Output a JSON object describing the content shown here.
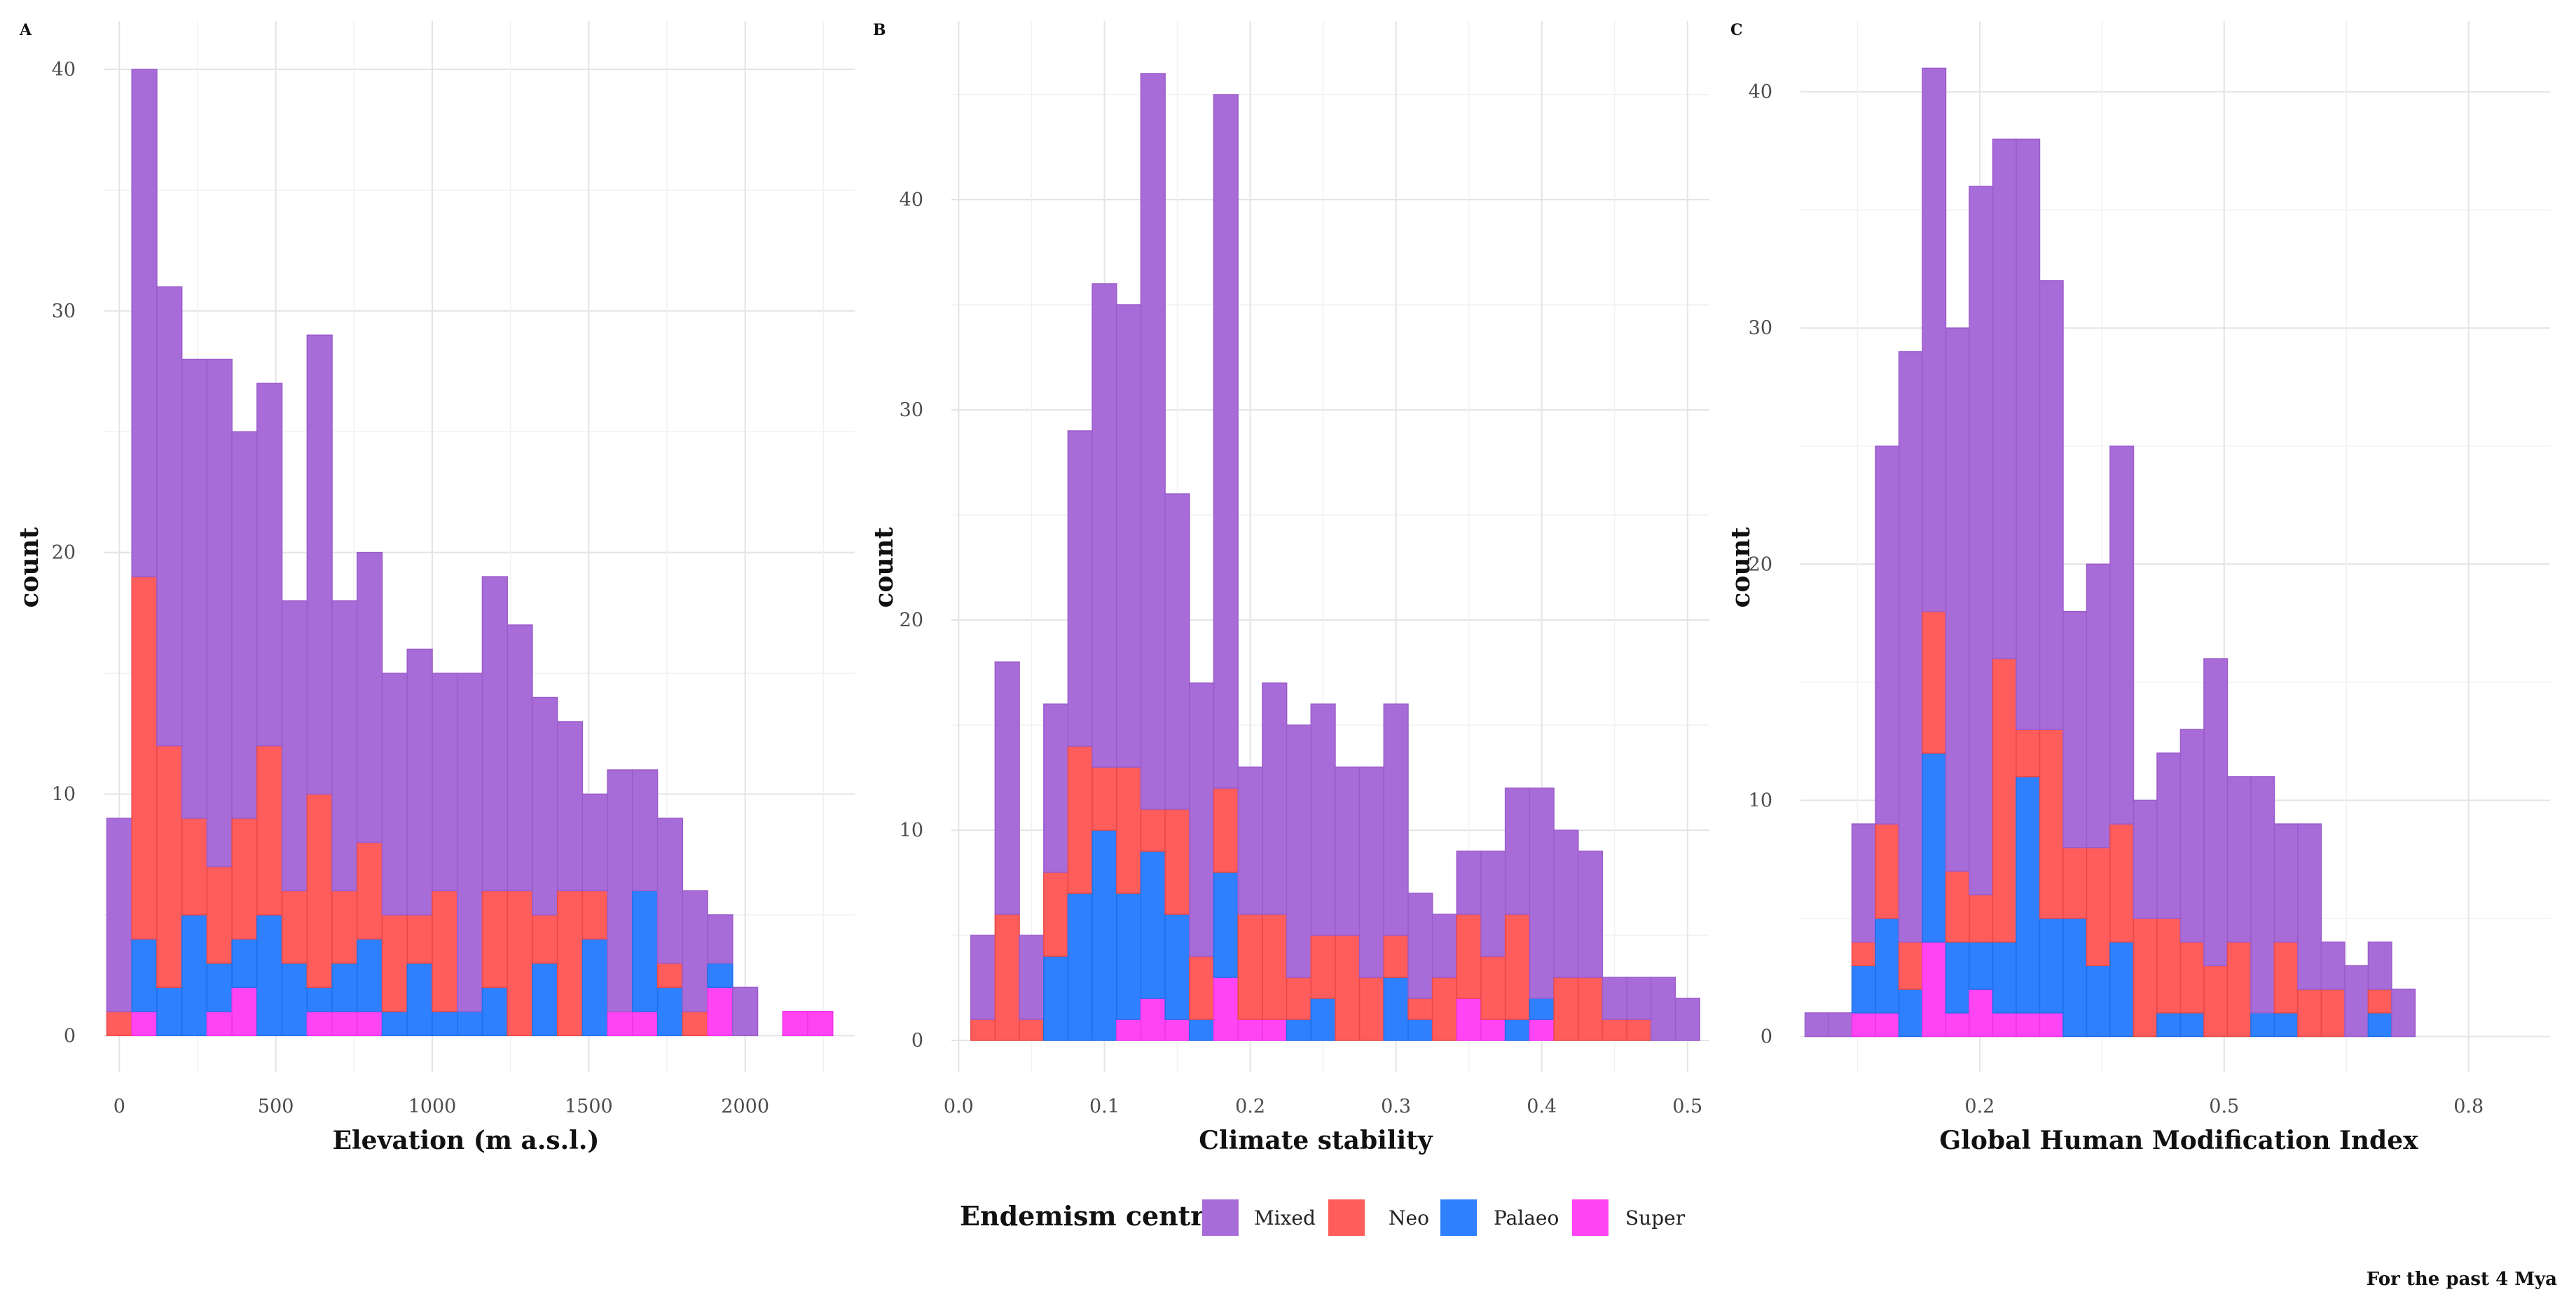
{
  "caption": "For the past 4 Mya",
  "legend": {
    "title": "Endemism centres",
    "entries": [
      {
        "label": "Mixed",
        "color": "#A86CD8"
      },
      {
        "label": "Neo",
        "color": "#FF5C5C"
      },
      {
        "label": "Palaeo",
        "color": "#2E80FF"
      },
      {
        "label": "Super",
        "color": "#FF44F4"
      }
    ]
  },
  "chart_data": [
    {
      "type": "bar",
      "stacked": true,
      "panel": "A",
      "title": "",
      "xlabel": "Elevation (m a.s.l.)",
      "ylabel": "count",
      "xlim": [
        -50,
        2350
      ],
      "ylim": [
        -1.5,
        42
      ],
      "bin_width": 80,
      "x": [
        0,
        80,
        160,
        240,
        320,
        400,
        480,
        560,
        640,
        720,
        800,
        880,
        960,
        1040,
        1120,
        1200,
        1280,
        1360,
        1440,
        1520,
        1600,
        1680,
        1760,
        1840,
        1920,
        2000,
        2080,
        2160,
        2240
      ],
      "xticks": [
        0,
        500,
        1000,
        1500,
        2000
      ],
      "xtick_labels": [
        "0",
        "500",
        "1000",
        "1500",
        "2000"
      ],
      "yticks": [
        0,
        10,
        20,
        30,
        40
      ],
      "ytick_labels": [
        "0",
        "10",
        "20",
        "30",
        "40"
      ],
      "grid": true,
      "series": [
        {
          "name": "Super",
          "values": [
            0,
            1,
            0,
            0,
            1,
            2,
            0,
            0,
            1,
            1,
            1,
            0,
            0,
            0,
            0,
            0,
            0,
            0,
            0,
            0,
            1,
            1,
            0,
            0,
            2,
            0,
            0,
            1,
            1
          ]
        },
        {
          "name": "Palaeo",
          "values": [
            0,
            3,
            2,
            5,
            2,
            2,
            5,
            3,
            1,
            2,
            3,
            1,
            3,
            1,
            1,
            2,
            0,
            3,
            0,
            4,
            0,
            5,
            2,
            0,
            1,
            0,
            0,
            0,
            0
          ]
        },
        {
          "name": "Neo",
          "values": [
            1,
            15,
            10,
            4,
            4,
            5,
            7,
            3,
            8,
            3,
            4,
            4,
            2,
            5,
            0,
            4,
            6,
            2,
            6,
            2,
            0,
            0,
            1,
            1,
            0,
            0,
            0,
            0,
            0
          ]
        },
        {
          "name": "Mixed",
          "values": [
            8,
            21,
            19,
            19,
            21,
            16,
            15,
            12,
            19,
            12,
            12,
            10,
            11,
            9,
            14,
            13,
            11,
            9,
            7,
            4,
            10,
            5,
            6,
            5,
            2,
            2,
            0,
            0,
            0
          ]
        }
      ]
    },
    {
      "type": "bar",
      "stacked": true,
      "panel": "B",
      "title": "",
      "xlabel": "Climate stability",
      "ylabel": "count",
      "xlim": [
        -0.005,
        0.515
      ],
      "ylim": [
        -1.5,
        48.5
      ],
      "bin_width": 0.01667,
      "x": [
        0.0167,
        0.0333,
        0.05,
        0.0667,
        0.0833,
        0.1,
        0.1167,
        0.1333,
        0.15,
        0.1667,
        0.1833,
        0.2,
        0.2167,
        0.2333,
        0.25,
        0.2667,
        0.2833,
        0.3,
        0.3167,
        0.3333,
        0.35,
        0.3667,
        0.3833,
        0.4,
        0.4167,
        0.4333,
        0.45,
        0.4667,
        0.4833,
        0.5
      ],
      "xticks": [
        0.0,
        0.1,
        0.2,
        0.3,
        0.4,
        0.5
      ],
      "xtick_labels": [
        "0.0",
        "0.1",
        "0.2",
        "0.3",
        "0.4",
        "0.5"
      ],
      "yticks": [
        0,
        10,
        20,
        30,
        40
      ],
      "ytick_labels": [
        "0",
        "10",
        "20",
        "30",
        "40"
      ],
      "grid": true,
      "series": [
        {
          "name": "Super",
          "values": [
            0,
            0,
            0,
            0,
            0,
            0,
            1,
            2,
            1,
            0,
            3,
            1,
            1,
            0,
            0,
            0,
            0,
            0,
            0,
            0,
            2,
            1,
            0,
            1,
            0,
            0,
            0,
            0,
            0,
            0
          ]
        },
        {
          "name": "Palaeo",
          "values": [
            0,
            0,
            0,
            4,
            7,
            10,
            6,
            7,
            5,
            1,
            5,
            0,
            0,
            1,
            2,
            0,
            0,
            3,
            1,
            0,
            0,
            0,
            1,
            1,
            0,
            0,
            0,
            0,
            0,
            0
          ]
        },
        {
          "name": "Neo",
          "values": [
            1,
            6,
            1,
            4,
            7,
            3,
            6,
            2,
            5,
            3,
            4,
            5,
            5,
            2,
            3,
            5,
            3,
            2,
            1,
            3,
            4,
            3,
            5,
            0,
            3,
            3,
            1,
            1,
            0,
            0
          ]
        },
        {
          "name": "Mixed",
          "values": [
            4,
            12,
            4,
            8,
            15,
            23,
            22,
            35,
            15,
            13,
            33,
            7,
            11,
            12,
            11,
            8,
            10,
            11,
            5,
            3,
            3,
            5,
            6,
            10,
            7,
            6,
            2,
            2,
            3,
            2
          ]
        }
      ]
    },
    {
      "type": "bar",
      "stacked": true,
      "panel": "C",
      "title": "",
      "xlabel": "Global Human Modification Index",
      "ylabel": "count",
      "xlim": [
        -0.02,
        0.9
      ],
      "ylim": [
        -1.5,
        43
      ],
      "bin_width": 0.0288,
      "x": [
        0.0,
        0.0288,
        0.0576,
        0.0864,
        0.1152,
        0.144,
        0.1728,
        0.2016,
        0.2304,
        0.2592,
        0.288,
        0.3168,
        0.3456,
        0.3744,
        0.4032,
        0.432,
        0.4608,
        0.4896,
        0.5184,
        0.5472,
        0.576,
        0.6048,
        0.6336,
        0.6624,
        0.6912,
        0.72,
        0.7488,
        0.7776,
        0.8064,
        0.8352
      ],
      "xticks": [
        0.2,
        0.5,
        0.8
      ],
      "xtick_labels": [
        "0.2",
        "0.5",
        "0.8"
      ],
      "yticks": [
        0,
        10,
        20,
        30,
        40
      ],
      "ytick_labels": [
        "0",
        "10",
        "20",
        "30",
        "40"
      ],
      "grid": true,
      "series": [
        {
          "name": "Super",
          "values": [
            0,
            0,
            1,
            1,
            0,
            4,
            1,
            2,
            1,
            1,
            1,
            0,
            0,
            0,
            0,
            0,
            0,
            0,
            0,
            0,
            0,
            0,
            0,
            0,
            0,
            0,
            0,
            0,
            0,
            0
          ]
        },
        {
          "name": "Palaeo",
          "values": [
            0,
            0,
            2,
            4,
            2,
            8,
            3,
            2,
            3,
            10,
            4,
            5,
            3,
            4,
            0,
            1,
            1,
            0,
            0,
            1,
            1,
            0,
            0,
            0,
            1,
            0,
            0,
            0,
            0,
            0
          ]
        },
        {
          "name": "Neo",
          "values": [
            0,
            0,
            1,
            4,
            2,
            6,
            3,
            2,
            12,
            2,
            8,
            3,
            5,
            5,
            5,
            4,
            3,
            3,
            4,
            0,
            3,
            2,
            2,
            0,
            1,
            0,
            0,
            0,
            0,
            0
          ]
        },
        {
          "name": "Mixed",
          "values": [
            1,
            1,
            5,
            16,
            25,
            23,
            23,
            30,
            22,
            25,
            19,
            10,
            12,
            16,
            5,
            7,
            9,
            13,
            7,
            10,
            5,
            7,
            2,
            3,
            2,
            2,
            0,
            0,
            0,
            0
          ]
        }
      ]
    }
  ]
}
